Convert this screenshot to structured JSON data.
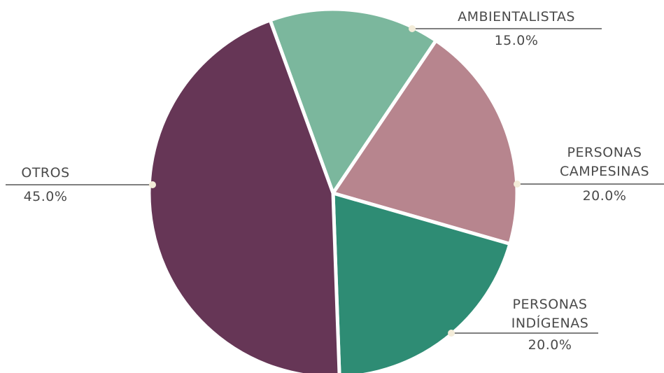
{
  "chart_data": {
    "type": "pie",
    "title": "",
    "slices": [
      {
        "label": [
          "AMBIENTALISTAS"
        ],
        "value": 15.0,
        "value_label": "15.0%",
        "color": "#7bb79d"
      },
      {
        "label": [
          "PERSONAS",
          "CAMPESINAS"
        ],
        "value": 20.0,
        "value_label": "20.0%",
        "color": "#b7858e"
      },
      {
        "label": [
          "PERSONAS",
          "INDÍGENAS"
        ],
        "value": 20.0,
        "value_label": "20.0%",
        "color": "#2e8c74"
      },
      {
        "label": [
          "OTROS"
        ],
        "value": 45.0,
        "value_label": "45.0%",
        "color": "#663656"
      }
    ],
    "start_angle_deg": -20,
    "direction": "clockwise",
    "legend": "none"
  }
}
